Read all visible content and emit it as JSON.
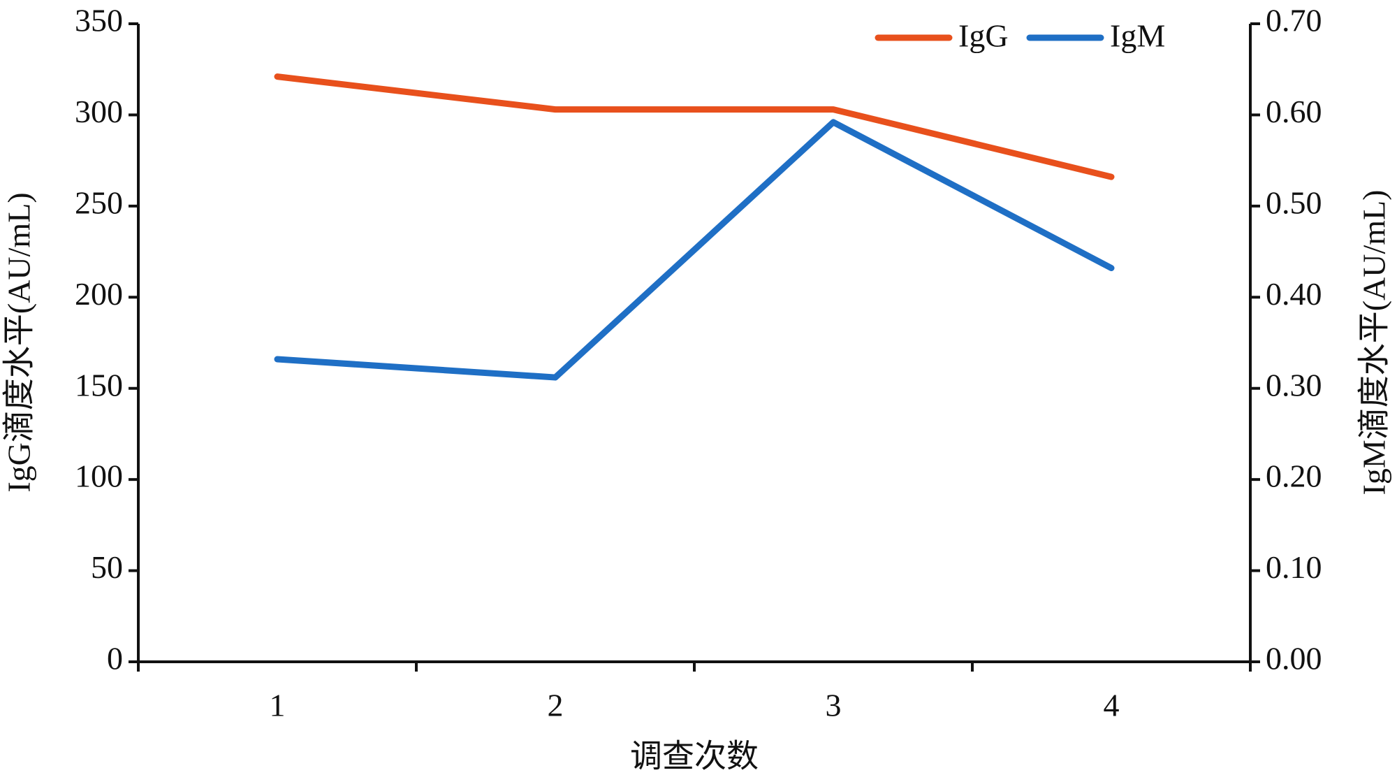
{
  "chart_data": {
    "type": "line",
    "x_label": "调查次数",
    "y_label": "IgG滴度水平(AU/mL)",
    "y2_label": "IgM滴度水平(AU/mL)",
    "categories": [
      "1",
      "2",
      "3",
      "4"
    ],
    "series": [
      {
        "name": "IgG",
        "color": "#e8501c",
        "values": [
          321,
          303,
          303,
          266
        ]
      },
      {
        "name": "IgM",
        "color": "#1f6fc5",
        "axis": "y2",
        "values": [
          0.332,
          0.312,
          0.592,
          0.432
        ]
      }
    ],
    "ylim": [
      0,
      350
    ],
    "yticks": [
      0,
      50,
      100,
      150,
      200,
      250,
      300,
      350
    ],
    "y2lim": [
      0,
      0.7
    ],
    "y2ticks": [
      {
        "value": 0,
        "label": "0.00"
      },
      {
        "value": 0.1,
        "label": "0.10"
      },
      {
        "value": 0.2,
        "label": "0.20"
      },
      {
        "value": 0.3,
        "label": "0.30"
      },
      {
        "value": 0.4,
        "label": "0.40"
      },
      {
        "value": 0.5,
        "label": "0.50"
      },
      {
        "value": 0.6,
        "label": "0.60"
      },
      {
        "value": 0.7,
        "label": "0.70"
      }
    ],
    "legend": "top-right",
    "grid": false
  }
}
